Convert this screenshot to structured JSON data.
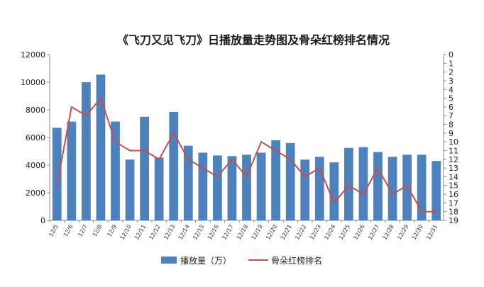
{
  "chart_data": {
    "type": "bar",
    "title": "《飞刀又见飞刀》日播放量走势图及骨朵红榜排名情况",
    "categories": [
      "12/5",
      "12/6",
      "12/7",
      "12/8",
      "12/9",
      "12/10",
      "12/11",
      "12/12",
      "12/13",
      "12/14",
      "12/15",
      "12/16",
      "12/17",
      "12/18",
      "12/19",
      "12/20",
      "12/21",
      "12/22",
      "12/23",
      "12/24",
      "12/25",
      "12/26",
      "12/27",
      "12/28",
      "12/29",
      "12/30",
      "12/31"
    ],
    "series": [
      {
        "name": "播放量（万）",
        "type": "bar",
        "axis": "left",
        "color": "#4f81bd",
        "values": [
          6700,
          7150,
          10000,
          10550,
          7150,
          4400,
          7500,
          4550,
          7850,
          5400,
          4900,
          4700,
          4650,
          4750,
          4900,
          5800,
          5600,
          4400,
          4600,
          4200,
          5250,
          5300,
          4950,
          4600,
          4750,
          4750,
          4300
        ]
      },
      {
        "name": "骨朵红榜排名",
        "type": "line",
        "axis": "right",
        "color": "#c0504d",
        "values": [
          15,
          6,
          7,
          5,
          10,
          11,
          11,
          12,
          9,
          12,
          13,
          14,
          12,
          14,
          10,
          11,
          12,
          14,
          13,
          17,
          15,
          16,
          13,
          16,
          15,
          18,
          18
        ]
      }
    ],
    "y_left": {
      "min": 0,
      "max": 12000,
      "ticks": [
        "0",
        "2000",
        "4000",
        "6000",
        "8000",
        "10000",
        "12000"
      ]
    },
    "y_right": {
      "min": 0,
      "max": 19,
      "reversed": true,
      "ticks": [
        "0",
        "1",
        "2",
        "3",
        "4",
        "5",
        "6",
        "7",
        "8",
        "9",
        "10",
        "11",
        "12",
        "13",
        "14",
        "15",
        "16",
        "17",
        "18",
        "19"
      ]
    },
    "legend_position": "bottom",
    "grid": false
  }
}
